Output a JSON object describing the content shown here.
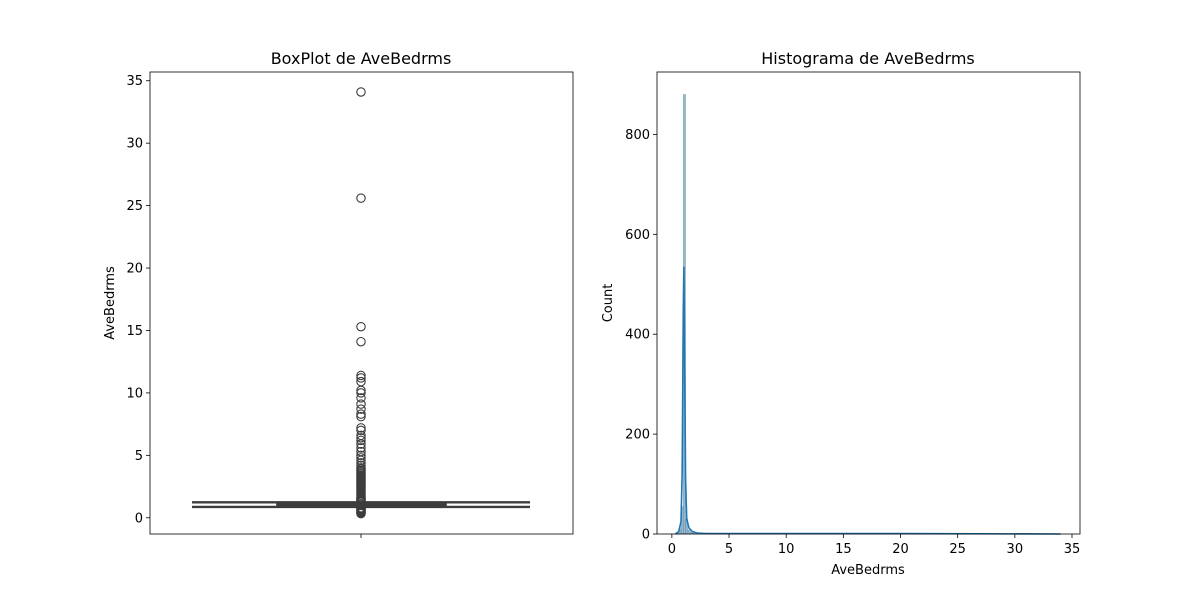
{
  "chart_data": [
    {
      "type": "box",
      "title": "BoxPlot de AveBedrms",
      "xlabel": "",
      "ylabel": "AveBedrms",
      "ylim": [
        -1.3,
        35.7
      ],
      "yticks": [
        0,
        5,
        10,
        15,
        20,
        25,
        30,
        35
      ],
      "box": {
        "q1": 1.006,
        "median": 1.049,
        "q3": 1.1,
        "whisker_low": 0.866,
        "whisker_high": 1.24
      },
      "outliers": [
        0.33,
        0.38,
        0.42,
        0.46,
        0.5,
        0.55,
        0.6,
        0.65,
        0.7,
        0.75,
        0.8,
        1.3,
        1.35,
        1.4,
        1.45,
        1.5,
        1.55,
        1.6,
        1.7,
        1.8,
        1.9,
        2.0,
        2.1,
        2.2,
        2.3,
        2.4,
        2.5,
        2.6,
        2.7,
        2.8,
        2.9,
        3.0,
        3.1,
        3.2,
        3.3,
        3.4,
        3.5,
        3.6,
        3.7,
        3.8,
        3.9,
        4.0,
        4.2,
        4.4,
        4.6,
        4.8,
        5.0,
        5.3,
        5.6,
        5.9,
        6.2,
        6.4,
        6.6,
        7.0,
        7.2,
        8.1,
        8.3,
        8.7,
        9.1,
        9.6,
        10.0,
        10.2,
        10.9,
        11.2,
        11.4,
        14.1,
        15.3,
        25.6,
        34.1
      ],
      "color": "#3d3d3d"
    },
    {
      "type": "histogram",
      "title": "Histograma de AveBedrms",
      "xlabel": "AveBedrms",
      "ylabel": "Count",
      "xlim": [
        -1.3,
        35.7
      ],
      "ylim": [
        0,
        925
      ],
      "xticks": [
        0,
        5,
        10,
        15,
        20,
        25,
        30,
        35
      ],
      "yticks": [
        0,
        200,
        400,
        600,
        800
      ],
      "bin_width": 0.2,
      "bins": [
        {
          "x0": 0.4,
          "count": 2
        },
        {
          "x0": 0.6,
          "count": 10
        },
        {
          "x0": 0.8,
          "count": 55
        },
        {
          "x0": 1.0,
          "count": 880
        },
        {
          "x0": 1.2,
          "count": 30
        },
        {
          "x0": 1.4,
          "count": 8
        },
        {
          "x0": 1.6,
          "count": 4
        },
        {
          "x0": 1.8,
          "count": 2
        }
      ],
      "kde": {
        "x": [
          0.3,
          0.6,
          0.8,
          0.9,
          1.0,
          1.05,
          1.1,
          1.2,
          1.3,
          1.5,
          1.8,
          2.2,
          3.0,
          5.0,
          10.0,
          20.0,
          34.0
        ],
        "y": [
          0,
          5,
          25,
          120,
          450,
          535,
          400,
          110,
          30,
          12,
          5,
          2,
          1,
          1,
          1,
          1,
          0
        ]
      },
      "color": "#1f77b4"
    }
  ]
}
